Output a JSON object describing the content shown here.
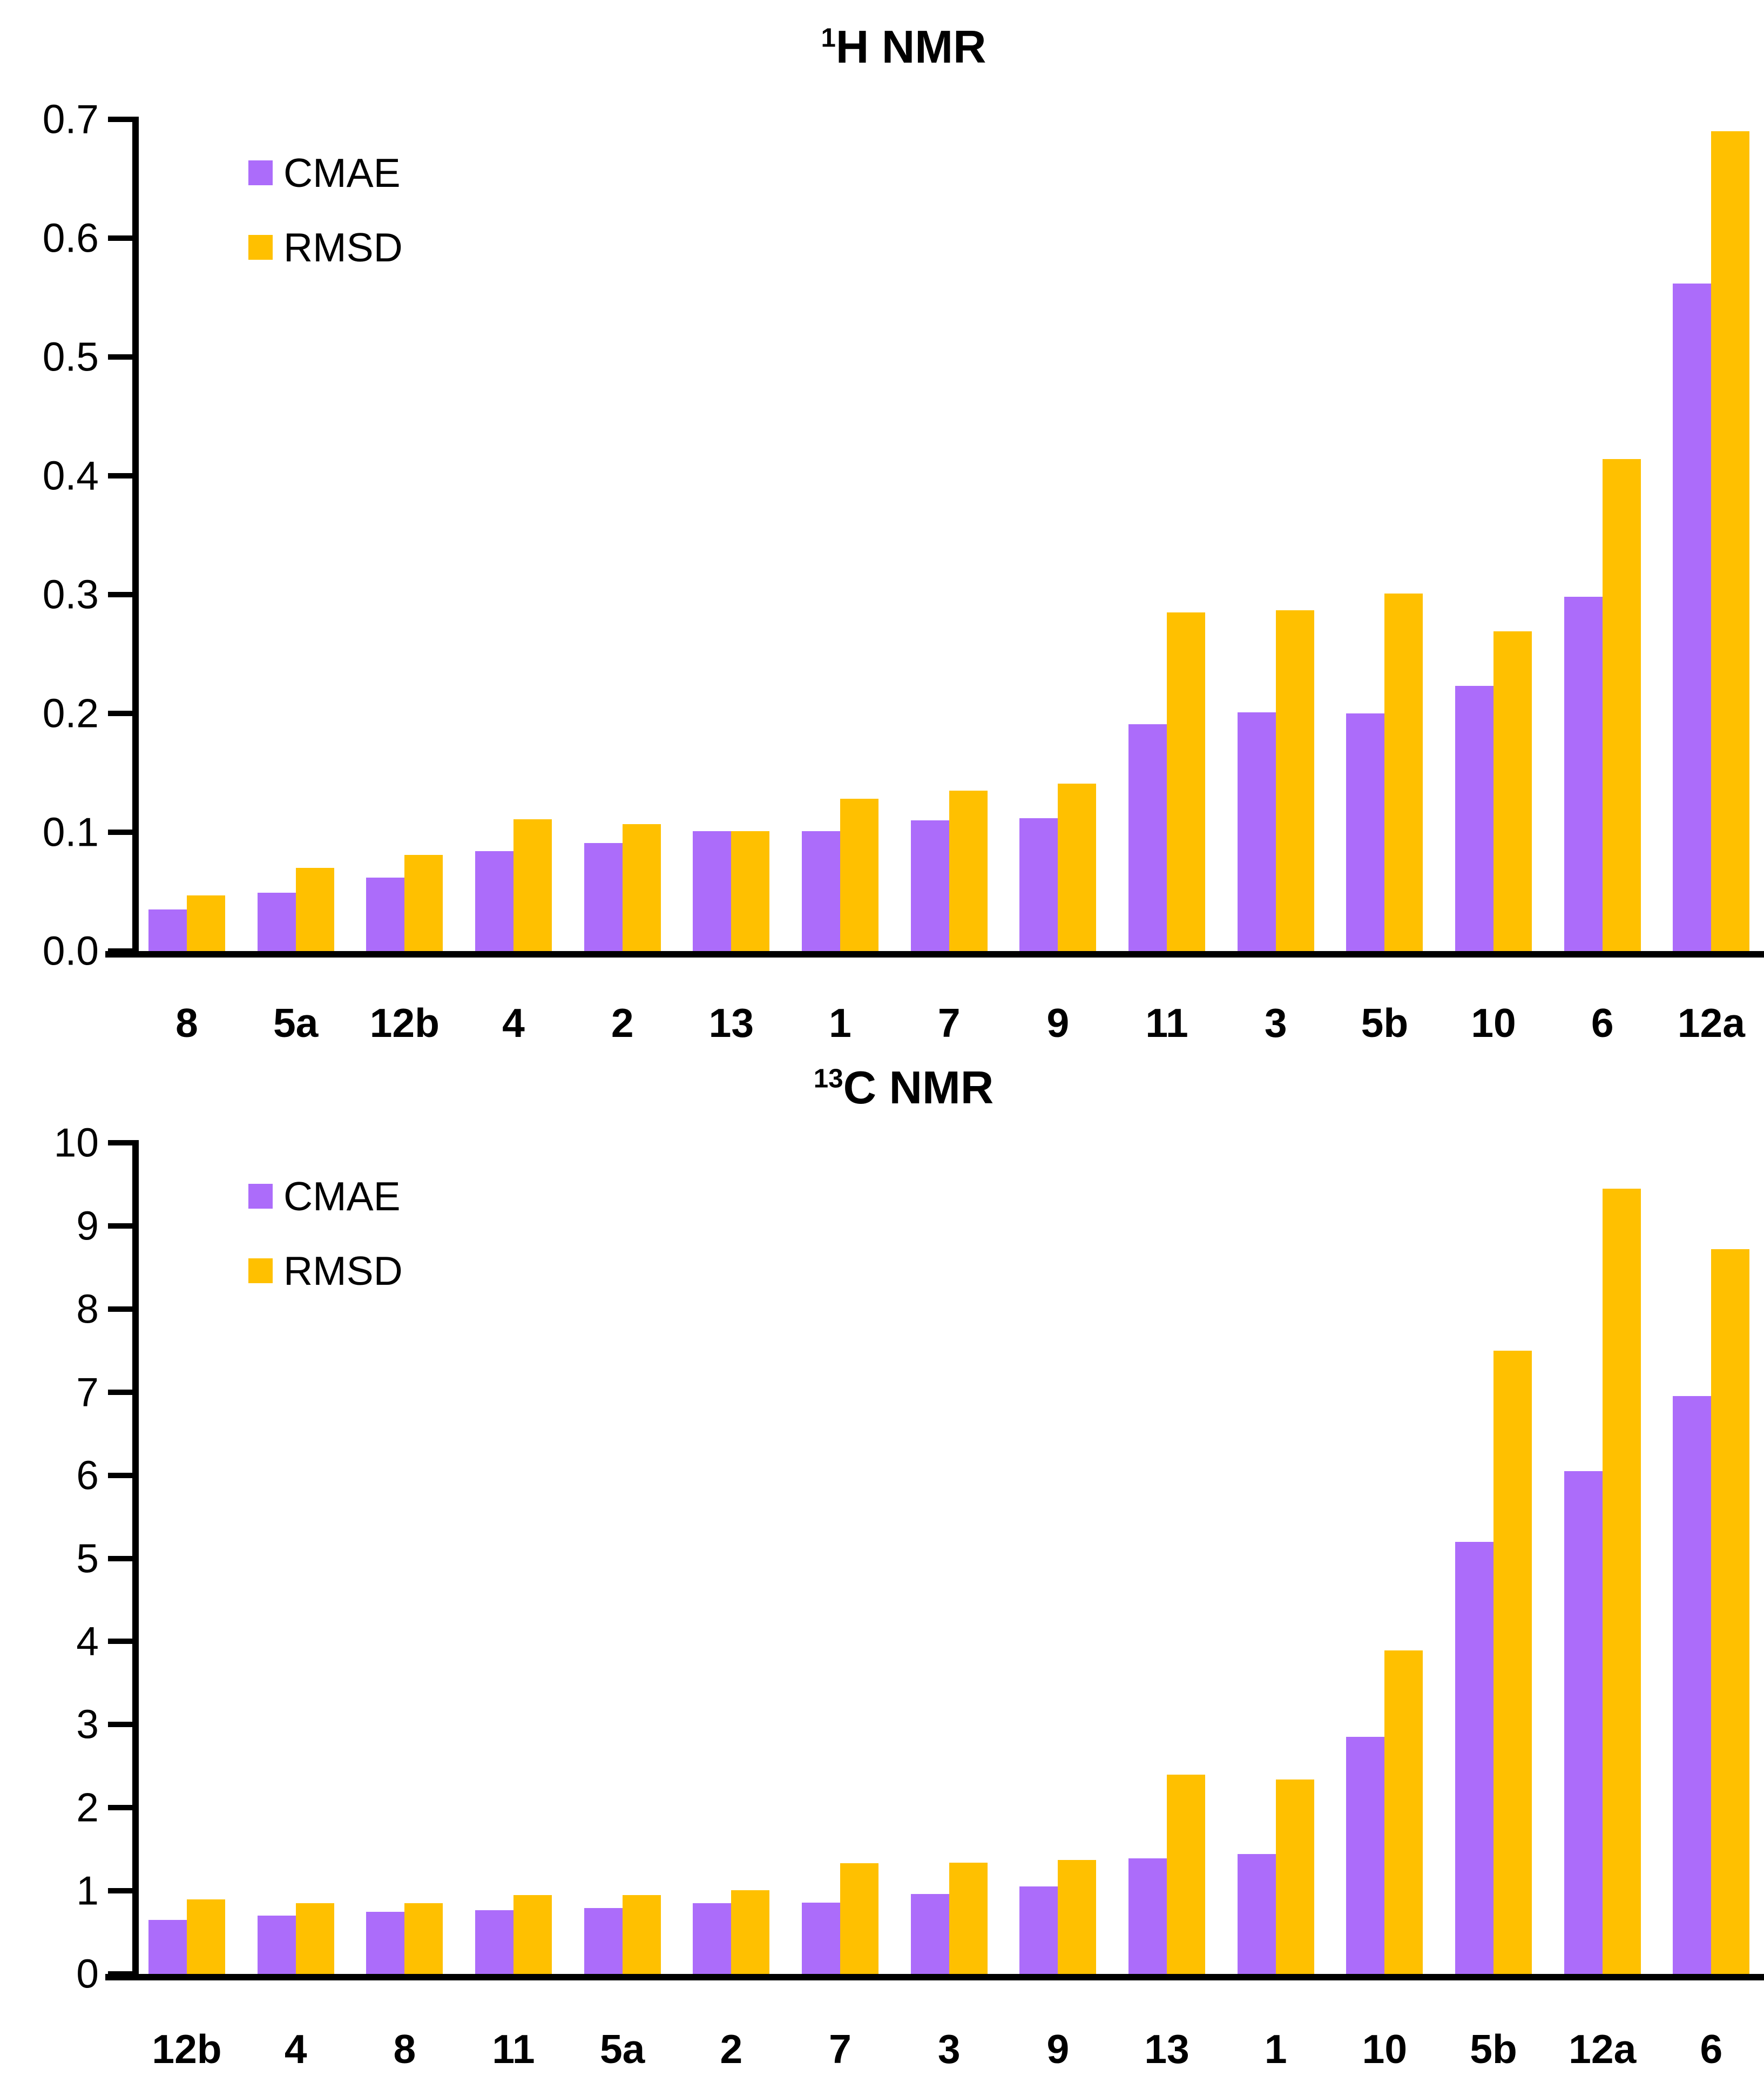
{
  "page": {
    "background": "#ffffff",
    "axis_color": "#000000"
  },
  "legend": {
    "items": [
      {
        "label": "CMAE",
        "color": "#AC6CFA"
      },
      {
        "label": "RMSD",
        "color": "#FFC000"
      }
    ]
  },
  "chart_data": [
    {
      "type": "bar",
      "title": {
        "sup": "1",
        "text": "H NMR"
      },
      "categories": [
        "8",
        "5a",
        "12b",
        "4",
        "2",
        "13",
        "1",
        "7",
        "9",
        "11",
        "3",
        "5b",
        "10",
        "6",
        "12a"
      ],
      "series": [
        {
          "name": "CMAE",
          "color": "#AC6CFA",
          "values": [
            0.035,
            0.049,
            0.062,
            0.084,
            0.091,
            0.101,
            0.101,
            0.11,
            0.112,
            0.191,
            0.201,
            0.2,
            0.223,
            0.298,
            0.562
          ]
        },
        {
          "name": "RMSD",
          "color": "#FFC000",
          "values": [
            0.047,
            0.07,
            0.081,
            0.111,
            0.107,
            0.101,
            0.128,
            0.135,
            0.141,
            0.285,
            0.287,
            0.301,
            0.269,
            0.414,
            0.69
          ]
        }
      ],
      "xlabel": "",
      "ylabel": "",
      "ylim": [
        0,
        0.7
      ],
      "yticks": [
        "0.7",
        "0.6",
        "0.5",
        "0.4",
        "0.3",
        "0.2",
        "0.1",
        "0.0"
      ],
      "grid": false,
      "legend_position": "top-left"
    },
    {
      "type": "bar",
      "title": {
        "sup": "13",
        "text": "C NMR"
      },
      "categories": [
        "12b",
        "4",
        "8",
        "11",
        "5a",
        "2",
        "7",
        "3",
        "9",
        "13",
        "1",
        "10",
        "5b",
        "12a",
        "6"
      ],
      "series": [
        {
          "name": "CMAE",
          "color": "#AC6CFA",
          "values": [
            0.65,
            0.7,
            0.75,
            0.77,
            0.79,
            0.85,
            0.86,
            0.96,
            1.05,
            1.39,
            1.44,
            2.85,
            5.2,
            6.05,
            6.95
          ]
        },
        {
          "name": "RMSD",
          "color": "#FFC000",
          "values": [
            0.9,
            0.85,
            0.85,
            0.95,
            0.95,
            1.01,
            1.33,
            1.34,
            1.37,
            2.4,
            2.34,
            3.89,
            7.5,
            9.45,
            8.72
          ]
        }
      ],
      "xlabel": "",
      "ylabel": "",
      "ylim": [
        0,
        10
      ],
      "yticks": [
        "10",
        "9",
        "8",
        "7",
        "6",
        "5",
        "4",
        "3",
        "2",
        "1",
        "0"
      ],
      "grid": false,
      "legend_position": "top-left"
    }
  ]
}
